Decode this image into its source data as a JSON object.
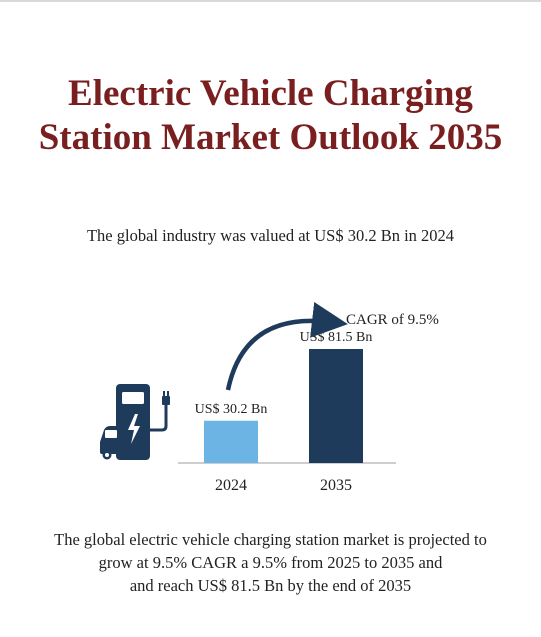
{
  "title": {
    "line1": "Electric Vehicle Charging",
    "line2": "Station Market Outlook 2035"
  },
  "subtitle": "The global industry was valued at US$ 30.2 Bn in 2024",
  "cagr_label": "CAGR of 9.5%",
  "icon": "ev-charger-icon",
  "colors": {
    "title": "#7a1f1f",
    "bar_2024": "#6cb4e4",
    "bar_2035": "#1f3b5c",
    "icon": "#1f3b5c",
    "arrow": "#1f3b5c"
  },
  "chart_data": {
    "type": "bar",
    "categories": [
      "2024",
      "2035"
    ],
    "values": [
      30.2,
      81.5
    ],
    "data_labels": [
      "US$ 30.2 Bn",
      "US$ 81.5 Bn"
    ],
    "unit": "US$ Bn",
    "annotation": "CAGR of 9.5%",
    "title": "",
    "xlabel": "",
    "ylabel": "",
    "ylim": [
      0,
      81.5
    ],
    "grid": false
  },
  "footer": {
    "line1": "The global electric vehicle charging station market is projected to",
    "line2": "grow at 9.5% CAGR a 9.5% from 2025 to 2035 and",
    "line3": "and reach US$ 81.5 Bn by the end of 2035"
  }
}
